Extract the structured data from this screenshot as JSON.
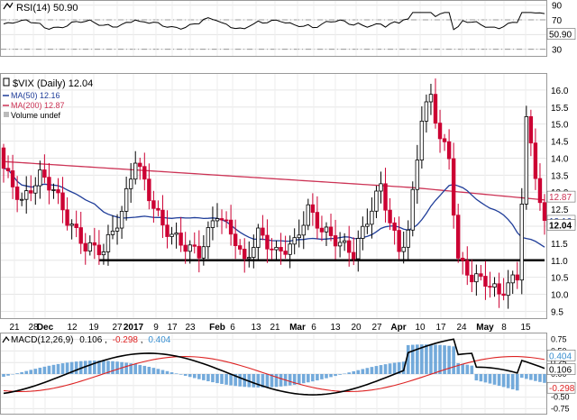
{
  "chart_data": [
    {
      "panel": "rsi",
      "type": "line",
      "legend": "RSI(14) 50.90",
      "ylim": [
        21,
        97
      ],
      "ticks": [
        90,
        70,
        50,
        30
      ],
      "levels": [
        70,
        30
      ],
      "current": 50.9,
      "current_label": "50.90",
      "colors": {
        "line": "#000000",
        "level": "#999999"
      }
    },
    {
      "panel": "price",
      "type": "candlestick",
      "legend": {
        "main": "$VIX (Daily) 12.04",
        "ma50": "MA(50) 12.16",
        "ma200": "MA(200) 12.87",
        "volume": "Volume undef"
      },
      "ylim": [
        9.3,
        16.5
      ],
      "ticks": [
        "16.0",
        "15.5",
        "15.0",
        "14.5",
        "14.0",
        "13.5",
        "13.0",
        "12.5",
        "12.0",
        "11.5",
        "11.0",
        "10.5",
        "10.0",
        "9.5"
      ],
      "support_level": 11.0,
      "last_values": {
        "ma200": 12.87,
        "ma50": 12.16,
        "close": 12.04
      },
      "last_labels": {
        "ma200": "12.87",
        "ma50": "12.16",
        "close": "12.04"
      },
      "x_labels": [
        "21",
        "28",
        "Dec",
        "12",
        "19",
        "27",
        "2017",
        "9",
        "17",
        "23",
        "Feb",
        "6",
        "13",
        "21",
        "Mar",
        "6",
        "13",
        "20",
        "27",
        "Apr",
        "10",
        "17",
        "24",
        "May",
        "8",
        "15"
      ],
      "colors": {
        "up": "#ffffff",
        "down": "#cc0033",
        "ma50": "#1f3d99",
        "ma200": "#cc3355",
        "support": "#000000"
      }
    },
    {
      "panel": "macd",
      "type": "line+bar",
      "legend": {
        "name": "MACD(12,26,9)",
        "macd": "0.106",
        "signal": "-0.298",
        "hist": "0.404"
      },
      "ylim": [
        -0.86,
        0.86
      ],
      "ticks": [
        "0.75",
        "0.50",
        "0.25",
        "0.00",
        "-0.25",
        "-0.50",
        "-0.75"
      ],
      "current": {
        "macd": 0.106,
        "signal": -0.298,
        "hist": 0.404
      },
      "current_labels": {
        "macd": "0.106",
        "signal": "-0.298",
        "hist": "0.404"
      },
      "colors": {
        "macd": "#000000",
        "signal": "#dd2222",
        "hist": "#5b9bd5"
      }
    }
  ]
}
